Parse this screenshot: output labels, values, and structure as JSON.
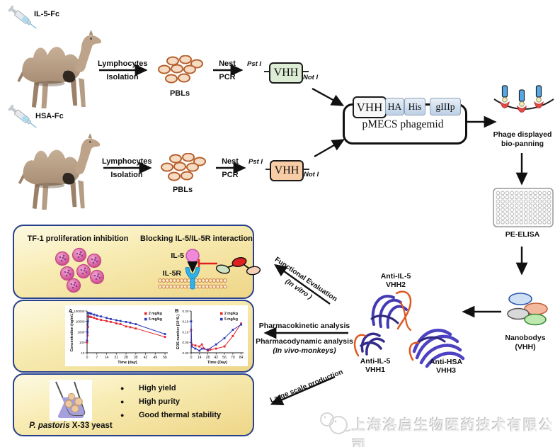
{
  "workflow": {
    "immunizations": [
      {
        "antigen": "IL-5-Fc",
        "isolation_top": "Lymphocytes",
        "isolation_bottom": "Isolation",
        "cells": "PBLs",
        "pcr_top": "Nest",
        "pcr_bottom": "PCR",
        "enzyme_5": "Pst I",
        "gene": "VHH",
        "enzyme_3": "Not I"
      },
      {
        "antigen": "HSA-Fc",
        "isolation_top": "Lymphocytes",
        "isolation_bottom": "Isolation",
        "cells": "PBLs",
        "pcr_top": "Nest",
        "pcr_bottom": "PCR",
        "enzyme_5": "Pst I",
        "gene": "VHH",
        "enzyme_3": "Not I"
      }
    ],
    "phagemid": {
      "cassette": [
        "VHH",
        "HA",
        "His",
        "gIIIp"
      ],
      "name": "pMECS phagemid"
    },
    "biopanning": {
      "line1": "Phage displayed",
      "line2": "bio-panning"
    },
    "elisa": "PE-ELISA",
    "nanobodies": {
      "line1": "Nanobodys",
      "line2": "(VHH)"
    },
    "structures": {
      "vhh2": {
        "line1": "Anti-IL-5",
        "line2": "VHH2"
      },
      "vhh1": {
        "line1": "Anti-IL-5",
        "line2": "VHH1"
      },
      "vhh3": {
        "line1": "Anti-HSA",
        "line2": "VHH3"
      }
    },
    "arrows": {
      "functional_line1": "Functional Evaluation",
      "functional_line2": "(In vitro )",
      "pk": "Pharmacokinetic analysis",
      "pd_line1": "Pharmacodynamic analysis",
      "pd_line2": "(In vivo-monkeys)",
      "production": "Large scale production"
    }
  },
  "panels": {
    "evaluation": {
      "tf1_title": "TF-1 proliferation inhibition",
      "blocking_title": "Blocking IL-5/IL-5R interaction",
      "il5": "IL-5",
      "il5r": "IL-5R"
    },
    "production": {
      "strain_italic": "P. pastoris",
      "strain_rest": " X-33 yeast",
      "bullet_glyph": "●",
      "bullets": [
        "High yield",
        "High purity",
        "Good thermal stability"
      ]
    }
  },
  "watermark": "上海洛启生物医药技术有限公司",
  "theme": {
    "panel_border": "#27408b",
    "panel_fill": "#f8ecb4",
    "vhh_green": "#ddecd5",
    "vhh_orange": "#f8cda6",
    "inhibit_red": "#e01f1f",
    "receptor_blue": "#2db3ea",
    "il5_pink": "#f08ad8"
  },
  "chart_data": [
    {
      "type": "line",
      "panel_label": "A",
      "xlabel": "Time (day)",
      "ylabel": "Concentration (ng/mL)",
      "yscale": "log",
      "xlim": [
        0,
        58
      ],
      "ylim": [
        10,
        100000
      ],
      "xticks": [
        0,
        7,
        14,
        21,
        28,
        35,
        42,
        49,
        56
      ],
      "yticks": [
        10,
        100,
        1000,
        10000,
        100000
      ],
      "legend_position": "top-right",
      "grid": false,
      "series": [
        {
          "name": "2 mg/kg",
          "color": "#e8252c",
          "x": [
            0,
            0.3,
            0.6,
            1,
            2,
            3,
            5,
            7,
            10,
            14,
            17,
            21,
            24,
            28,
            31,
            35,
            56
          ],
          "y": [
            100,
            450,
            3000,
            30000,
            28000,
            26000,
            22000,
            17000,
            14000,
            11000,
            9000,
            6500,
            5500,
            3300,
            2800,
            2100,
            330
          ]
        },
        {
          "name": "5 mg/kg",
          "color": "#2b39b8",
          "x": [
            0,
            0.3,
            0.6,
            1,
            2,
            3,
            5,
            7,
            10,
            14,
            17,
            21,
            24,
            28,
            31,
            35,
            56
          ],
          "y": [
            150,
            900,
            10000,
            65000,
            61000,
            54000,
            45000,
            37000,
            30000,
            22000,
            17000,
            13000,
            11000,
            9000,
            7500,
            5500,
            620
          ]
        }
      ]
    },
    {
      "type": "line",
      "panel_label": "B",
      "xlabel": "Time (Day)",
      "ylabel": "EOS number (10⁹/L)",
      "yscale": "linear",
      "xlim": [
        0,
        88
      ],
      "ylim": [
        0,
        0.2
      ],
      "xticks": [
        0,
        14,
        28,
        42,
        56,
        70,
        84
      ],
      "yticks": [
        0,
        0.05,
        0.1,
        0.15,
        0.2
      ],
      "legend_position": "top-right",
      "grid": false,
      "series": [
        {
          "name": "2 mg/kg",
          "color": "#e8252c",
          "x": [
            0,
            1,
            7,
            14,
            18,
            22,
            28,
            32,
            42,
            56,
            70,
            84
          ],
          "y": [
            0.11,
            0.04,
            0.035,
            0.03,
            0.04,
            0.02,
            0.01,
            0.015,
            0.02,
            0.03,
            0.08,
            0.14
          ]
        },
        {
          "name": "5 mg/kg",
          "color": "#2b39b8",
          "x": [
            0,
            1,
            7,
            14,
            18,
            28,
            42,
            56,
            70,
            84
          ],
          "y": [
            0.15,
            0.03,
            0.02,
            0.01,
            0.02,
            0.015,
            0.04,
            0.07,
            0.11,
            0.135
          ]
        }
      ]
    }
  ]
}
